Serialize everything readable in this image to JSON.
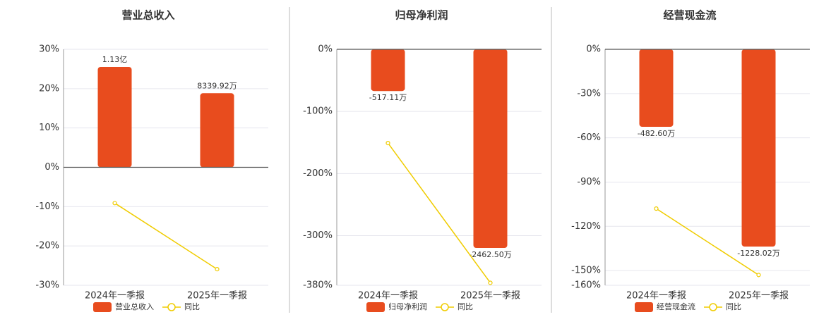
{
  "chart_data": [
    {
      "type": "bar",
      "title": "营业总收入",
      "categories": [
        "2024年一季报",
        "2025年一季报"
      ],
      "series": [
        {
          "name": "营业总收入",
          "color": "#e84c1e",
          "axis": "y2",
          "values": [
            113000000,
            83399200
          ],
          "value_labels": [
            "1.13亿",
            "8339.92万"
          ]
        },
        {
          "name": "同比",
          "type": "line",
          "color": "#f0cc00",
          "values": [
            -9.1,
            -25.9
          ]
        }
      ],
      "ylim": [
        -30,
        30
      ],
      "yticks": [
        {
          "value": 30,
          "label": "30%"
        },
        {
          "value": 20,
          "label": "20%"
        },
        {
          "value": 10,
          "label": "10%"
        },
        {
          "value": 0,
          "label": "0%"
        },
        {
          "value": -10,
          "label": "-10%"
        },
        {
          "value": -20,
          "label": "-20%"
        },
        {
          "value": -30,
          "label": "-30%"
        }
      ],
      "y2lim": [
        -132800000,
        132800000
      ],
      "grid": true
    },
    {
      "type": "bar",
      "title": "归母净利润",
      "categories": [
        "2024年一季报",
        "2025年一季报"
      ],
      "series": [
        {
          "name": "归母净利润",
          "color": "#e84c1e",
          "axis": "y2",
          "values": [
            -5171100,
            -24625000
          ],
          "value_labels": [
            "-517.11万",
            "-2462.50万"
          ]
        },
        {
          "name": "同比",
          "type": "line",
          "color": "#f0cc00",
          "values": [
            -151,
            -376
          ]
        }
      ],
      "ylim": [
        -380,
        0
      ],
      "yticks": [
        {
          "value": 0,
          "label": "0%"
        },
        {
          "value": -100,
          "label": "-100%"
        },
        {
          "value": -200,
          "label": "-200%"
        },
        {
          "value": -300,
          "label": "-300%"
        },
        {
          "value": -380,
          "label": "-380%"
        }
      ],
      "y2lim": [
        -29250000,
        0
      ],
      "grid": true
    },
    {
      "type": "bar",
      "title": "经营现金流",
      "categories": [
        "2024年一季报",
        "2025年一季报"
      ],
      "series": [
        {
          "name": "经营现金流",
          "color": "#e84c1e",
          "axis": "y2",
          "values": [
            -4826000,
            -12280200
          ],
          "value_labels": [
            "-482.60万",
            "-1228.02万"
          ]
        },
        {
          "name": "同比",
          "type": "line",
          "color": "#f0cc00",
          "values": [
            -108,
            -153
          ]
        }
      ],
      "ylim": [
        -160,
        0
      ],
      "yticks": [
        {
          "value": 0,
          "label": "0%"
        },
        {
          "value": -30,
          "label": "-30%"
        },
        {
          "value": -60,
          "label": "-60%"
        },
        {
          "value": -90,
          "label": "-90%"
        },
        {
          "value": -120,
          "label": "-120%"
        },
        {
          "value": -150,
          "label": "-150%"
        },
        {
          "value": -160,
          "label": "-160%"
        }
      ],
      "y2lim": [
        -14690000,
        0
      ],
      "grid": true
    }
  ]
}
